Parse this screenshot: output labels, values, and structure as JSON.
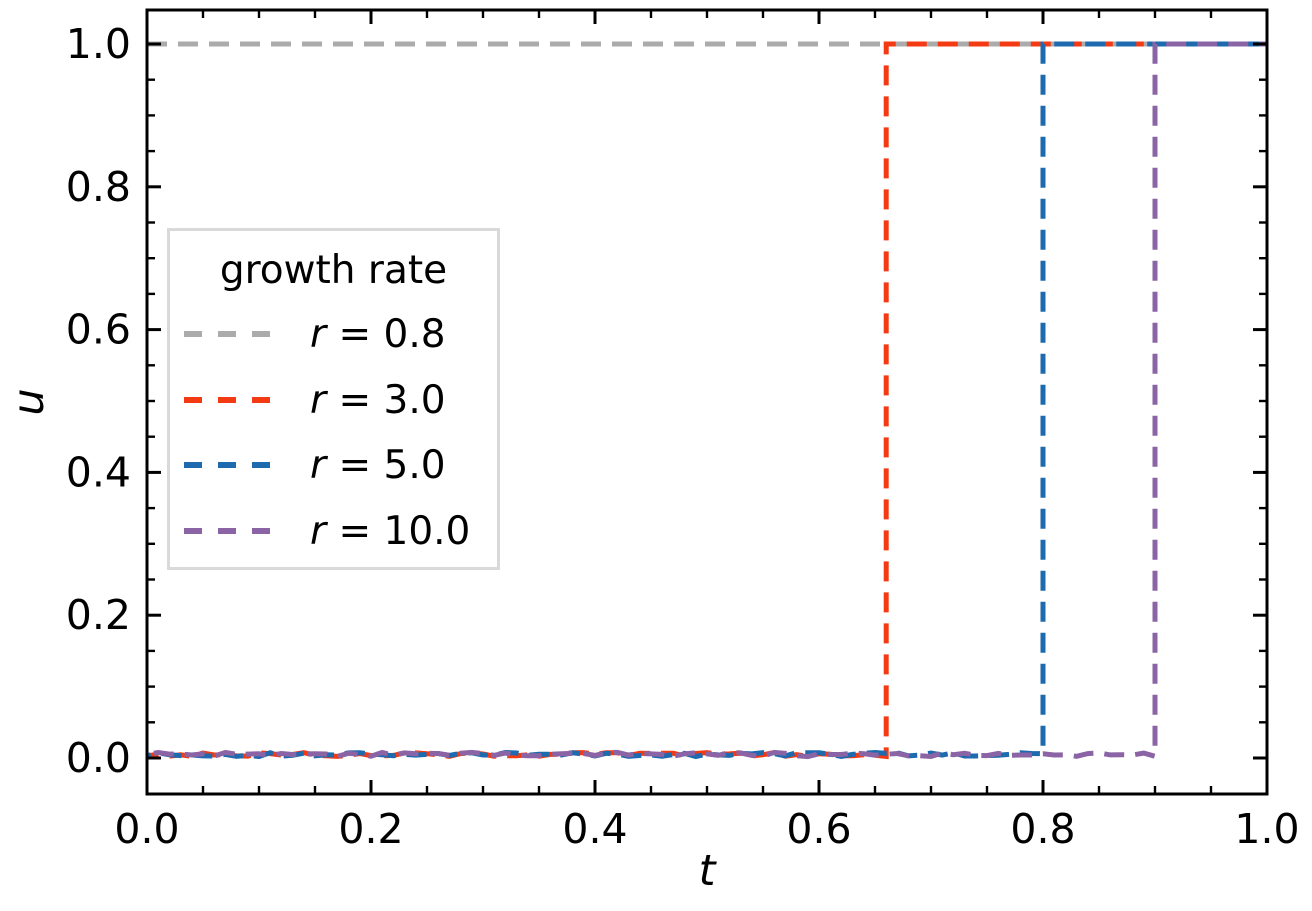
{
  "chart_data": {
    "type": "line",
    "title": "",
    "xlabel": "t",
    "ylabel": "u",
    "xlim": [
      0.0,
      1.0
    ],
    "ylim": [
      -0.05,
      1.05
    ],
    "grid": false,
    "line_style": "dashed",
    "tick_direction": "in",
    "ticks_on_all_sides": true,
    "minor_tick_step": 0.05,
    "xticks": {
      "values": [
        0.0,
        0.2,
        0.4,
        0.6,
        0.8,
        1.0
      ],
      "labels": [
        "0.0",
        "0.2",
        "0.4",
        "0.6",
        "0.8",
        "1.0"
      ]
    },
    "yticks": {
      "values": [
        0.0,
        0.2,
        0.4,
        0.6,
        0.8,
        1.0
      ],
      "labels": [
        "0.0",
        "0.2",
        "0.4",
        "0.6",
        "0.8",
        "1.0"
      ]
    },
    "legend": {
      "title": "growth rate",
      "position": "upper-left-inside",
      "border_color": "#d9d9d9",
      "entries": [
        {
          "var": "r",
          "rest": " = 0.8",
          "label": "r = 0.8"
        },
        {
          "var": "r",
          "rest": " = 3.0",
          "label": "r = 3.0"
        },
        {
          "var": "r",
          "rest": " = 5.0",
          "label": "r = 5.0"
        },
        {
          "var": "r",
          "rest": " = 10.0",
          "label": "r = 10.0"
        }
      ]
    },
    "series": [
      {
        "label": "r = 0.8",
        "color": "#ababab",
        "jump_t": null,
        "u_low": 1.0,
        "u_high": 1.0,
        "noise_amplitude": 0.0,
        "x": [
          0.0,
          1.0
        ],
        "y": [
          1.0,
          1.0
        ]
      },
      {
        "label": "r = 3.0",
        "color": "#f43a13",
        "jump_t": 0.66,
        "u_low": 0.004,
        "u_high": 1.0,
        "noise_amplitude": 0.006,
        "x": [
          0.0,
          0.66,
          0.66,
          1.0
        ],
        "y": [
          0.004,
          0.004,
          1.0,
          1.0
        ]
      },
      {
        "label": "r = 5.0",
        "color": "#1e6aae",
        "jump_t": 0.8,
        "u_low": 0.004,
        "u_high": 1.0,
        "noise_amplitude": 0.006,
        "x": [
          0.0,
          0.8,
          0.8,
          1.0
        ],
        "y": [
          0.004,
          0.004,
          1.0,
          1.0
        ]
      },
      {
        "label": "r = 10.0",
        "color": "#8a64a5",
        "jump_t": 0.9,
        "u_low": 0.004,
        "u_high": 1.0,
        "noise_amplitude": 0.006,
        "x": [
          0.0,
          0.9,
          0.9,
          1.0
        ],
        "y": [
          0.004,
          0.004,
          1.0,
          1.0
        ]
      }
    ]
  }
}
